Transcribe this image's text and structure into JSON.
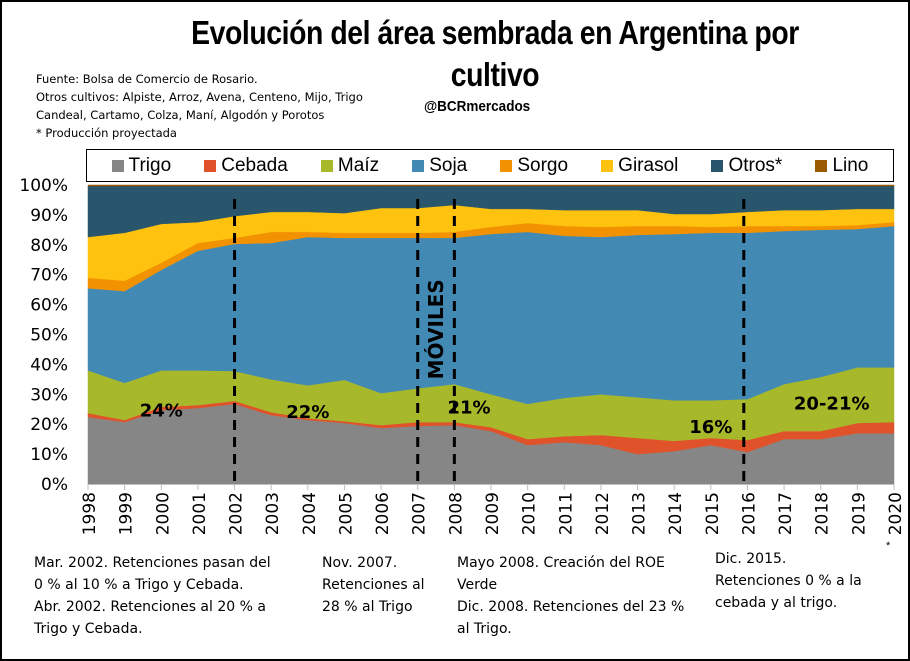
{
  "header": {
    "title": "Evolución del área sembrada en Argentina por cultivo",
    "handle": "@BCRmercados",
    "notes": [
      "Fuente: Bolsa de Comercio de Rosario.",
      "Otros cultivos: Alpiste, Arroz, Avena, Centeno, Mijo, Trigo",
      "Candeal, Cartamo, Colza, Maní, Algodón y Porotos",
      "* Producción proyectada"
    ]
  },
  "annotations": [
    {
      "lines": [
        "Mar. 2002. Retenciones pasan del",
        "0 % al 10 % a Trigo y Cebada.",
        "Abr. 2002. Retenciones al 20 % a",
        "Trigo y Cebada."
      ]
    },
    {
      "lines": [
        "Nov. 2007.",
        "Retenciones al",
        "28 % al  Trigo"
      ]
    },
    {
      "lines": [
        "Mayo 2008. Creación del ROE",
        "Verde",
        "Dic. 2008. Retenciones del 23 %",
        "al  Trigo."
      ]
    },
    {
      "lines": [
        "Dic. 2015.",
        "Retenciones 0 % a la",
        "cebada y al trigo."
      ]
    }
  ],
  "footnote_marker": "*",
  "chart_data": {
    "type": "area",
    "stacked": true,
    "normalized": true,
    "title": "Evolución del área sembrada en Argentina por cultivo",
    "xlabel": "",
    "ylabel": "",
    "ylim": [
      0,
      100
    ],
    "yticks": [
      "0%",
      "10%",
      "20%",
      "30%",
      "40%",
      "50%",
      "60%",
      "70%",
      "80%",
      "90%",
      "100%"
    ],
    "categories": [
      "1998",
      "1999",
      "2000",
      "2001",
      "2002",
      "2003",
      "2004",
      "2005",
      "2006",
      "2007",
      "2008",
      "2009",
      "2010",
      "2011",
      "2012",
      "2013",
      "2014",
      "2015",
      "2016",
      "2017",
      "2018",
      "2019",
      "2020"
    ],
    "projected_marker": {
      "category": "2020",
      "label": "*"
    },
    "legend_position": "top",
    "grid": false,
    "series": [
      {
        "name": "Trigo",
        "color": "#868686",
        "values": [
          22.4,
          20.7,
          24.7,
          25.4,
          26.8,
          23.0,
          21.4,
          20.4,
          18.7,
          19.4,
          19.7,
          17.7,
          13.0,
          14.0,
          13.0,
          10.0,
          11.0,
          13.0,
          10.7,
          15.0,
          15.0,
          17.0,
          17.0
        ]
      },
      {
        "name": "Cebada",
        "color": "#E0532A",
        "values": [
          1.3,
          0.7,
          1.1,
          1.0,
          1.0,
          1.0,
          0.6,
          0.6,
          1.0,
          1.3,
          1.0,
          1.3,
          2.0,
          2.0,
          3.4,
          5.4,
          3.4,
          2.4,
          4.0,
          2.7,
          2.7,
          3.4,
          3.7
        ]
      },
      {
        "name": "Maíz",
        "color": "#A7B82A",
        "values": [
          14.3,
          12.4,
          12.2,
          11.6,
          10.0,
          11.0,
          11.0,
          13.8,
          10.7,
          11.3,
          12.7,
          11.0,
          11.8,
          12.8,
          13.6,
          13.6,
          13.6,
          12.6,
          13.7,
          15.7,
          18.1,
          18.6,
          18.3
        ]
      },
      {
        "name": "Soja",
        "color": "#4289B4",
        "values": [
          27.5,
          30.7,
          33.6,
          40.0,
          42.5,
          45.6,
          49.6,
          47.5,
          51.9,
          50.3,
          48.9,
          53.6,
          57.5,
          54.2,
          52.6,
          54.3,
          55.6,
          56.0,
          55.6,
          51.2,
          49.2,
          46.3,
          47.3
        ]
      },
      {
        "name": "Sorgo",
        "color": "#F39200",
        "values": [
          3.5,
          3.5,
          2.4,
          2.6,
          2.0,
          3.7,
          1.7,
          1.7,
          1.7,
          1.7,
          2.0,
          2.4,
          3.0,
          3.3,
          3.4,
          3.0,
          2.7,
          2.0,
          2.3,
          1.7,
          1.3,
          1.3,
          1.3
        ]
      },
      {
        "name": "Girasol",
        "color": "#FFC20E",
        "values": [
          13.6,
          16.0,
          13.0,
          7.0,
          7.3,
          6.7,
          6.7,
          6.6,
          8.3,
          8.3,
          9.0,
          6.0,
          4.7,
          5.3,
          5.6,
          5.3,
          4.0,
          4.3,
          4.7,
          5.3,
          5.3,
          5.4,
          4.4
        ]
      },
      {
        "name": "Otros*",
        "color": "#29566D",
        "values": [
          17.1,
          15.7,
          12.7,
          12.1,
          10.1,
          8.7,
          8.7,
          9.1,
          7.4,
          7.4,
          6.4,
          7.7,
          7.7,
          8.1,
          8.1,
          8.1,
          9.4,
          9.4,
          8.7,
          8.1,
          8.1,
          7.7,
          7.7
        ]
      },
      {
        "name": "Lino",
        "color": "#9C5A00",
        "values": [
          0.3,
          0.3,
          0.3,
          0.3,
          0.3,
          0.3,
          0.3,
          0.3,
          0.3,
          0.3,
          0.3,
          0.3,
          0.3,
          0.3,
          0.3,
          0.3,
          0.3,
          0.3,
          0.3,
          0.3,
          0.3,
          0.3,
          0.3
        ]
      }
    ],
    "vertical_markers": [
      {
        "category": "2002",
        "style": "dashed"
      },
      {
        "category": "2007",
        "style": "dashed"
      },
      {
        "category": "2008",
        "style": "dashed"
      },
      {
        "category": "2015.9",
        "style": "dashed"
      }
    ],
    "period_label": {
      "text": "MÓVILES",
      "between": [
        "2007",
        "2008"
      ],
      "orientation": "vertical"
    },
    "data_labels": [
      {
        "text": "24%",
        "category": "2000",
        "y": 22.5
      },
      {
        "text": "22%",
        "category": "2004",
        "y": 22
      },
      {
        "text": "21%",
        "category": "2008.4",
        "y": 23.5
      },
      {
        "text": "16%",
        "category": "2015",
        "y": 17
      },
      {
        "text": "20-21%",
        "category": "2018.3",
        "y": 25
      }
    ]
  }
}
